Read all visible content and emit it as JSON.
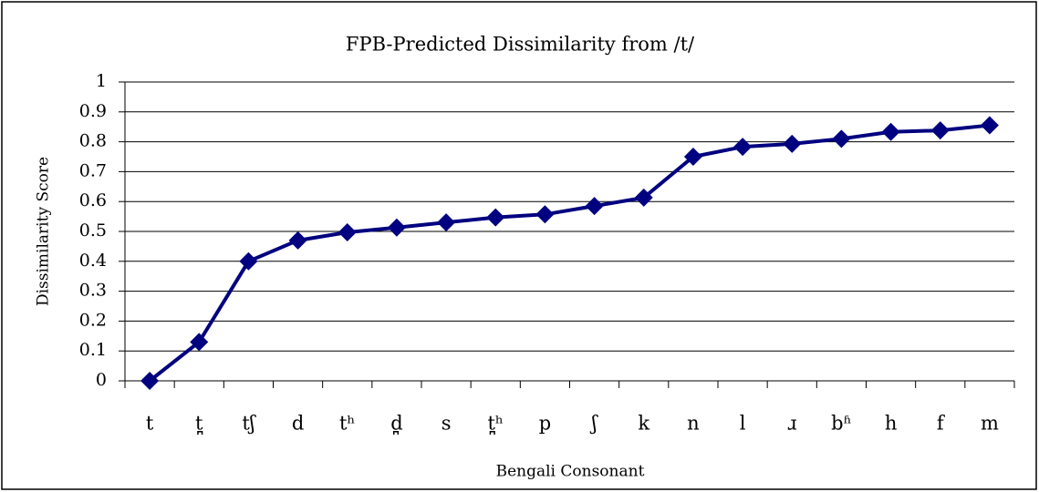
{
  "chart_data": {
    "type": "line",
    "title": "FPB-Predicted Dissimilarity from /t/",
    "x_label": "Bengali Consonant",
    "y_label": "Dissimilarity Score",
    "categories": [
      "t",
      "t̪",
      "tʃ",
      "d",
      "tʰ",
      "d̪",
      "s",
      "t̪ʰ",
      "p",
      "ʃ",
      "k",
      "n",
      "l",
      "ɹ",
      "bʱ",
      "h",
      "f",
      "m"
    ],
    "series": [
      {
        "name": "Dissimilarity Score",
        "color": "#000080",
        "values": [
          0,
          0.13,
          0.4,
          0.47,
          0.497,
          0.513,
          0.53,
          0.547,
          0.557,
          0.585,
          0.613,
          0.75,
          0.783,
          0.793,
          0.81,
          0.833,
          0.838,
          0.855
        ]
      }
    ],
    "ylim": [
      0,
      1
    ],
    "yticks": [
      0,
      0.1,
      0.2,
      0.3,
      0.4,
      0.5,
      0.6,
      0.7,
      0.8,
      0.9,
      1
    ],
    "grid": true
  }
}
